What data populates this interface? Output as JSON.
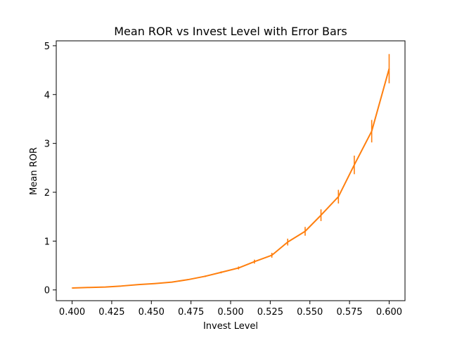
{
  "chart_data": {
    "type": "line",
    "title": "Mean ROR vs Invest Level with Error Bars",
    "xlabel": "Invest Level",
    "ylabel": "Mean ROR",
    "xlim": [
      0.39,
      0.61
    ],
    "ylim": [
      -0.22,
      5.1
    ],
    "xticks": [
      0.4,
      0.425,
      0.45,
      0.475,
      0.5,
      0.525,
      0.55,
      0.575,
      0.6
    ],
    "xtick_labels": [
      "0.400",
      "0.425",
      "0.450",
      "0.475",
      "0.500",
      "0.525",
      "0.550",
      "0.575",
      "0.600"
    ],
    "yticks": [
      0,
      1,
      2,
      3,
      4,
      5
    ],
    "ytick_labels": [
      "0",
      "1",
      "2",
      "3",
      "4",
      "5"
    ],
    "grid": false,
    "series": [
      {
        "color": "#ff7f0e",
        "points": [
          {
            "x": 0.4,
            "y": 0.04,
            "err": 0.005
          },
          {
            "x": 0.41,
            "y": 0.05,
            "err": 0.005
          },
          {
            "x": 0.421,
            "y": 0.06,
            "err": 0.005
          },
          {
            "x": 0.431,
            "y": 0.08,
            "err": 0.006
          },
          {
            "x": 0.442,
            "y": 0.11,
            "err": 0.007
          },
          {
            "x": 0.452,
            "y": 0.13,
            "err": 0.008
          },
          {
            "x": 0.463,
            "y": 0.16,
            "err": 0.01
          },
          {
            "x": 0.473,
            "y": 0.21,
            "err": 0.012
          },
          {
            "x": 0.484,
            "y": 0.28,
            "err": 0.015
          },
          {
            "x": 0.494,
            "y": 0.36,
            "err": 0.02
          },
          {
            "x": 0.505,
            "y": 0.45,
            "err": 0.03
          },
          {
            "x": 0.515,
            "y": 0.58,
            "err": 0.04
          },
          {
            "x": 0.526,
            "y": 0.71,
            "err": 0.05
          },
          {
            "x": 0.536,
            "y": 0.98,
            "err": 0.07
          },
          {
            "x": 0.547,
            "y": 1.2,
            "err": 0.09
          },
          {
            "x": 0.557,
            "y": 1.53,
            "err": 0.12
          },
          {
            "x": 0.568,
            "y": 1.91,
            "err": 0.14
          },
          {
            "x": 0.578,
            "y": 2.56,
            "err": 0.19
          },
          {
            "x": 0.589,
            "y": 3.25,
            "err": 0.23
          },
          {
            "x": 0.6,
            "y": 4.53,
            "err": 0.3
          }
        ]
      }
    ]
  }
}
